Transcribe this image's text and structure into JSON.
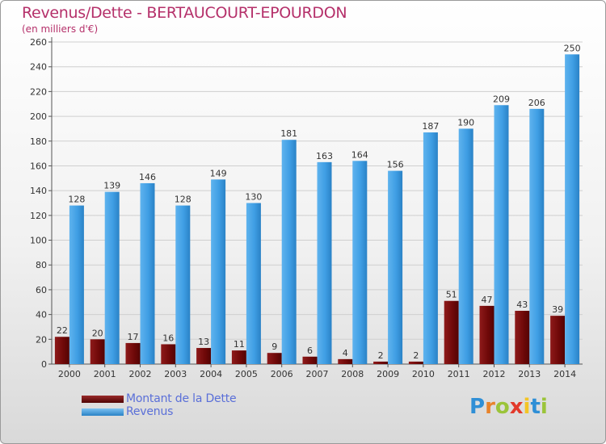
{
  "title": "Revenus/Dette - BERTAUCOURT-EPOURDON",
  "subtitle": "(en milliers d'€)",
  "logo": {
    "text": "Proxiti",
    "letter_colors": [
      "#2f8fd6",
      "#e8832b",
      "#9bc43a",
      "#e2392b",
      "#f3c425",
      "#2f8fd6",
      "#9bc43a"
    ]
  },
  "colors": {
    "dette": "#7a0b0b",
    "revenus": "#3f9ee4",
    "title": "#b5306a",
    "legend_text": "#5a6fd8"
  },
  "chart_data": {
    "type": "bar",
    "title": "Revenus/Dette - BERTAUCOURT-EPOURDON",
    "subtitle": "(en milliers d'€)",
    "xlabel": "",
    "ylabel": "",
    "categories": [
      "2000",
      "2001",
      "2002",
      "2003",
      "2004",
      "2005",
      "2006",
      "2007",
      "2008",
      "2009",
      "2010",
      "2011",
      "2012",
      "2013",
      "2014"
    ],
    "series": [
      {
        "name": "Montant de la Dette",
        "values": [
          22,
          20,
          17,
          16,
          13,
          11,
          9,
          6,
          4,
          2,
          2,
          51,
          47,
          43,
          39
        ]
      },
      {
        "name": "Revenus",
        "values": [
          128,
          139,
          146,
          128,
          149,
          130,
          181,
          163,
          164,
          156,
          187,
          190,
          209,
          206,
          250
        ]
      }
    ],
    "ylim": [
      0,
      260
    ],
    "yticks": [
      0,
      20,
      40,
      60,
      80,
      100,
      120,
      140,
      160,
      180,
      200,
      220,
      240,
      260
    ],
    "grid": true,
    "legend": "bottom-left"
  }
}
